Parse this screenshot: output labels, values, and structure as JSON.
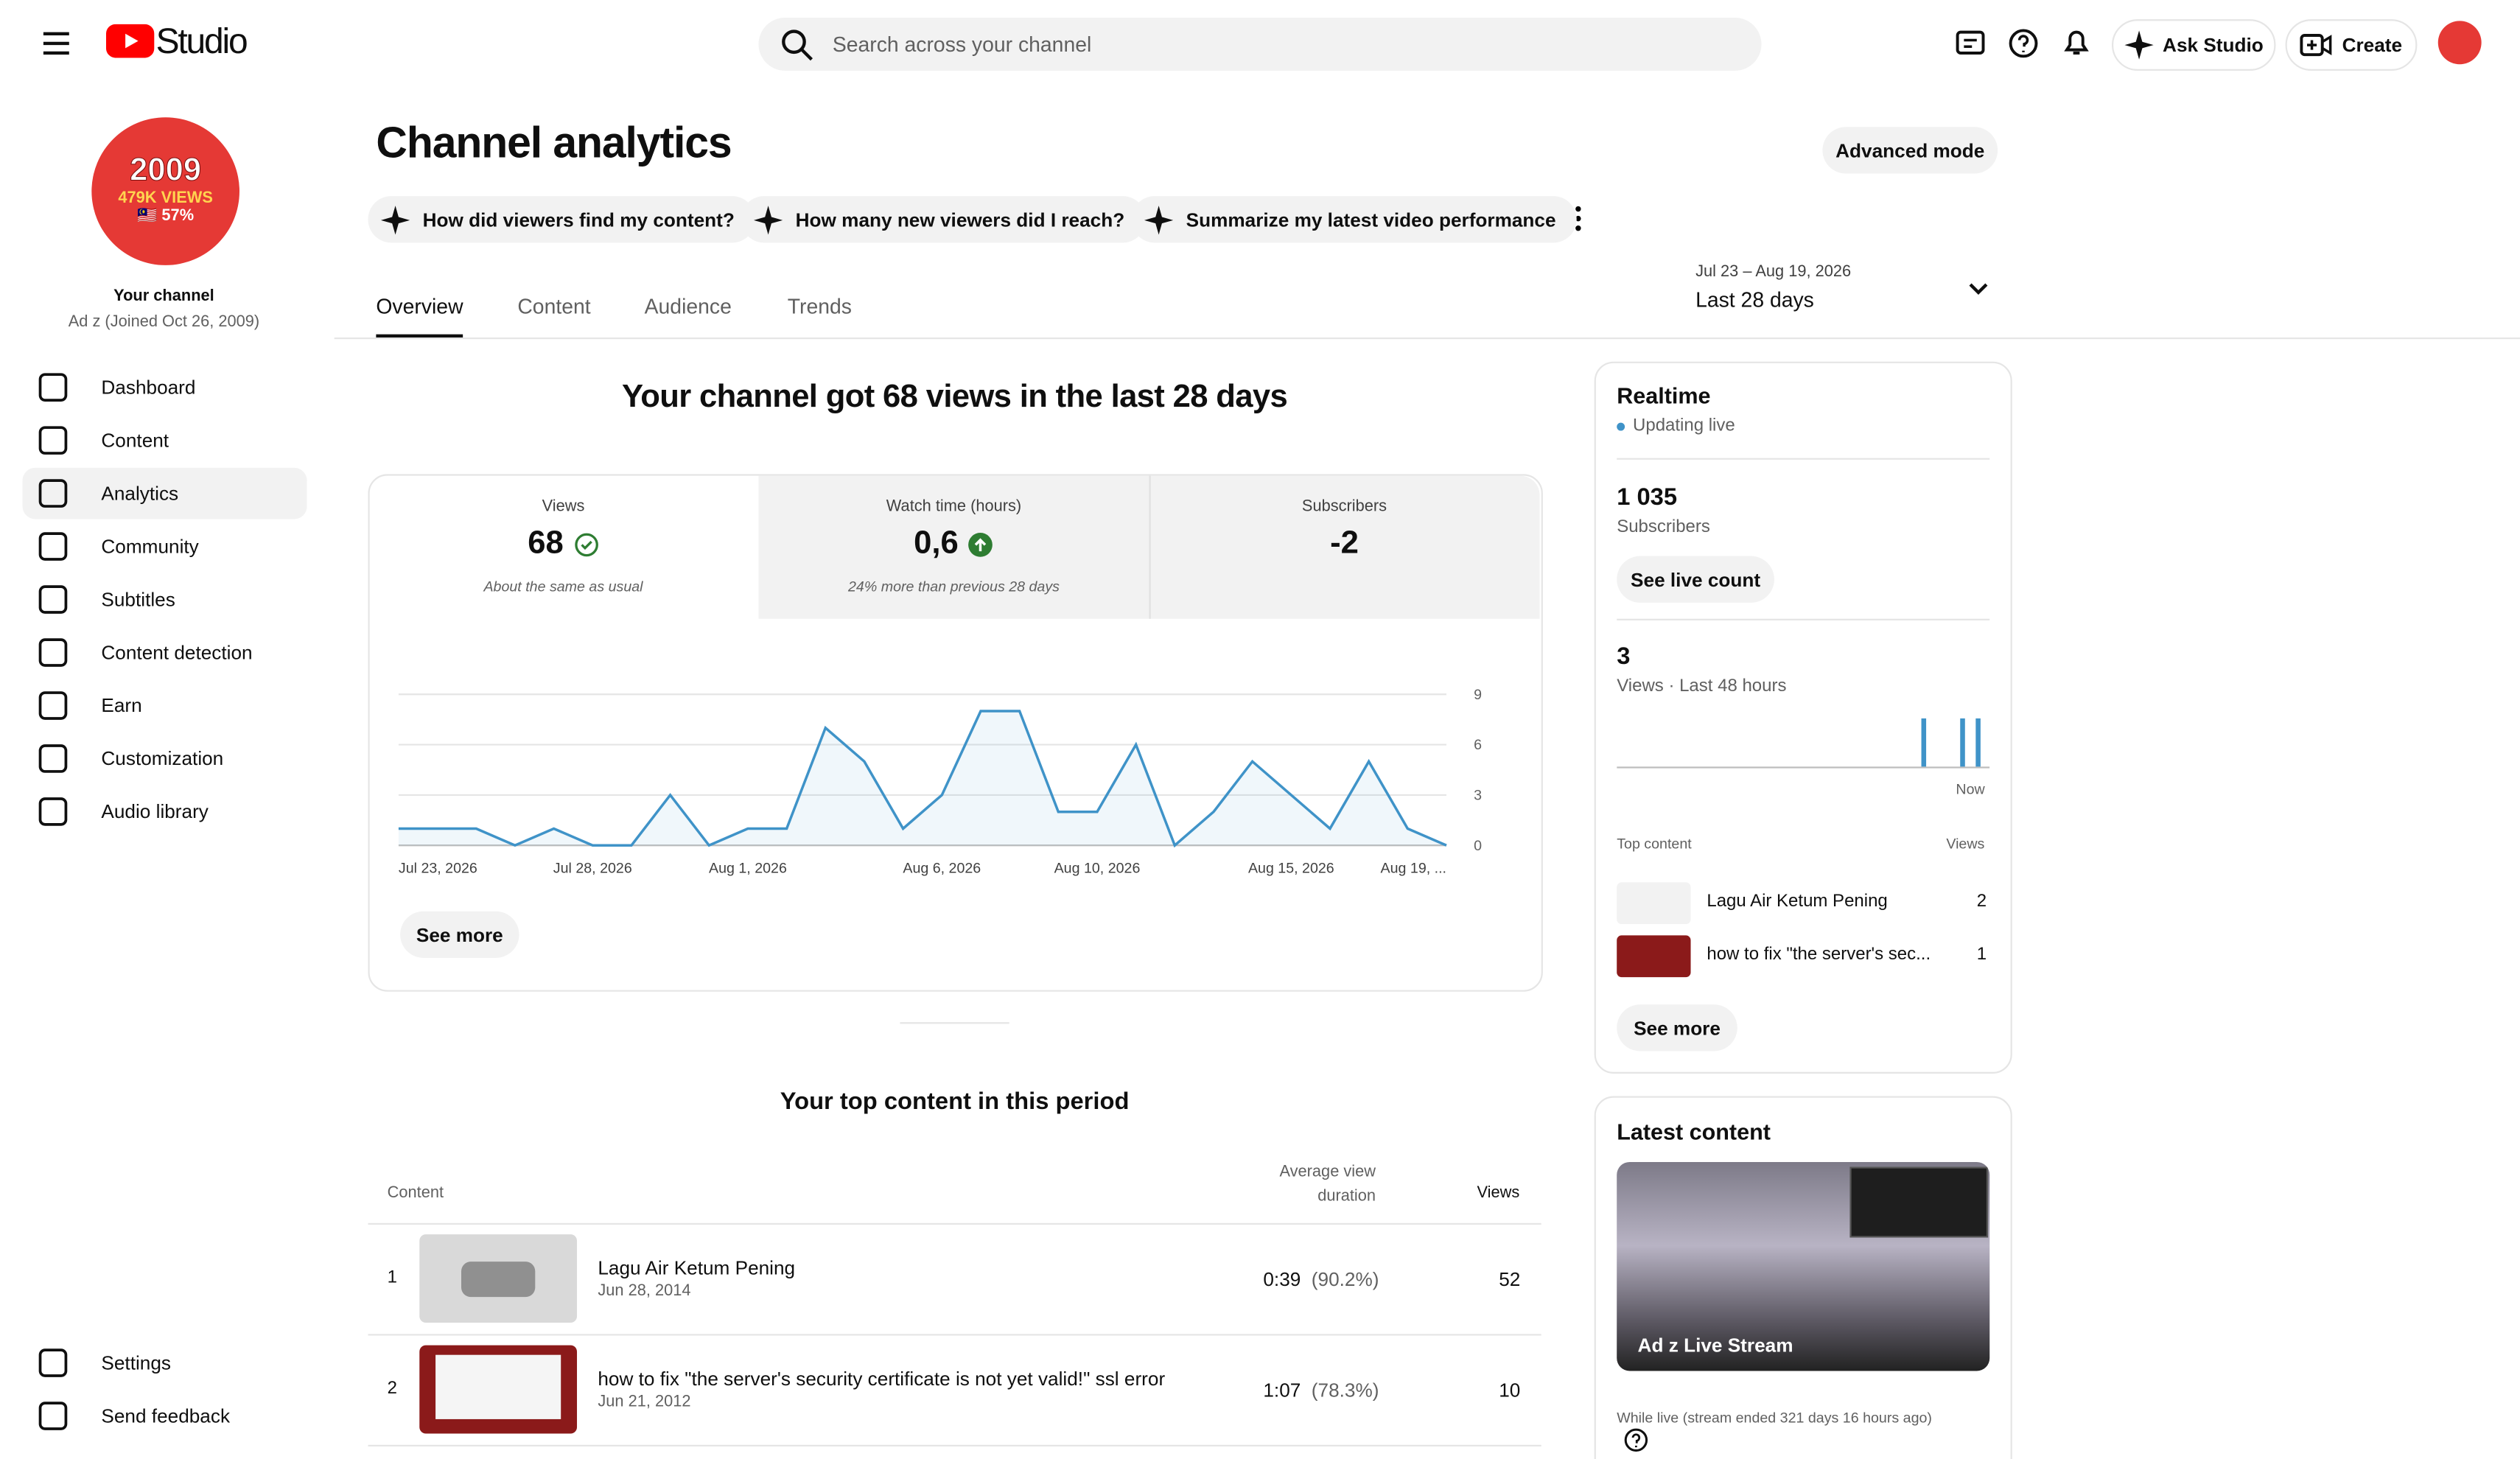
{
  "header": {
    "logo_text": "Studio",
    "search_placeholder": "Search across your channel",
    "ask_studio": "Ask Studio",
    "create": "Create"
  },
  "sidebar": {
    "avatar_lines": [
      "2009",
      "479K VIEWS",
      "🇲🇾 57%"
    ],
    "channel_label": "Your channel",
    "channel_sub": "Ad z (Joined Oct 26, 2009)",
    "items": [
      "Dashboard",
      "Content",
      "Analytics",
      "Community",
      "Subtitles",
      "Content detection",
      "Earn",
      "Customization",
      "Audio library"
    ],
    "footer_items": [
      "Settings",
      "Send feedback"
    ]
  },
  "page": {
    "title": "Channel analytics",
    "prompts": [
      "How did viewers find my content?",
      "How many new viewers did I reach?",
      "Summarize my latest video performance"
    ],
    "advanced": "Advanced mode",
    "tabs": [
      "Overview",
      "Content",
      "Audience",
      "Trends"
    ],
    "date_range": "Jul 23 – Aug 19, 2026",
    "date_label": "Last 28 days"
  },
  "overview": {
    "headline": "Your channel got 68 views in the last 28 days",
    "metrics": [
      {
        "label": "Views",
        "value": "68",
        "note": "About the same as usual"
      },
      {
        "label": "Watch time (hours)",
        "value": "0,6",
        "note": "24% more than previous 28 days"
      },
      {
        "label": "Subscribers",
        "value": "-2"
      }
    ],
    "see_more": "See more",
    "chart": {
      "type": "line",
      "x": [
        "Jul 23, 2026",
        null,
        null,
        null,
        null,
        "Jul 28, 2026",
        null,
        null,
        null,
        "Aug 1, 2026",
        null,
        null,
        null,
        null,
        "Aug 6, 2026",
        null,
        null,
        null,
        "Aug 10, 2026",
        null,
        null,
        null,
        null,
        "Aug 15, 2026",
        null,
        null,
        null,
        "Aug 19, ..."
      ],
      "values": [
        1,
        1,
        1,
        0,
        1,
        0,
        0,
        3,
        0,
        1,
        1,
        7,
        5,
        1,
        3,
        8,
        8,
        2,
        2,
        6,
        0,
        2,
        5,
        3,
        1,
        5,
        1,
        0
      ],
      "ylim": [
        0,
        9
      ],
      "yticks": [
        0,
        3,
        6,
        9
      ],
      "color": "#3f93c8",
      "grid": true
    }
  },
  "top_content": {
    "title": "Your top content in this period",
    "columns": [
      "Content",
      "Average view duration",
      "Views"
    ],
    "rows": [
      {
        "rank": "1",
        "title": "Lagu Air Ketum Pening",
        "date": "Jun 28, 2014",
        "duration": "0:39",
        "percent": "(90.2%)",
        "views": "52"
      },
      {
        "rank": "2",
        "title": "how to fix \"the server's security certificate is not yet valid!\" ssl error",
        "date": "Jun 21, 2012",
        "duration": "1:07",
        "percent": "(78.3%)",
        "views": "10"
      }
    ]
  },
  "realtime": {
    "title": "Realtime",
    "status": "Updating live",
    "subscribers": "1 035",
    "subscribers_label": "Subscribers",
    "see_live": "See live count",
    "views": "3",
    "views_label": "Views · Last 48 hours",
    "now": "Now",
    "chart": {
      "type": "bar",
      "values": [
        0,
        0,
        0,
        0,
        0,
        0,
        0,
        0,
        0,
        0,
        0,
        0,
        0,
        0,
        0,
        0,
        0,
        0,
        0,
        0,
        0,
        0,
        0,
        0,
        0,
        0,
        0,
        0,
        0,
        0,
        0,
        0,
        0,
        0,
        0,
        0,
        0,
        0,
        0,
        1,
        0,
        0,
        0,
        0,
        1,
        0,
        1,
        0
      ],
      "ylim": [
        0,
        1
      ],
      "color": "#3f93c8"
    },
    "top_label": "Top content",
    "views_col": "Views",
    "items": [
      {
        "title": "Lagu Air Ketum Pening",
        "views": "2"
      },
      {
        "title": "how to fix \"the server's sec...",
        "views": "1"
      }
    ],
    "see_more": "See more"
  },
  "latest": {
    "title": "Latest content",
    "video_title": "Ad z Live Stream",
    "note": "While live (stream ended 321 days 16 hours ago)"
  }
}
